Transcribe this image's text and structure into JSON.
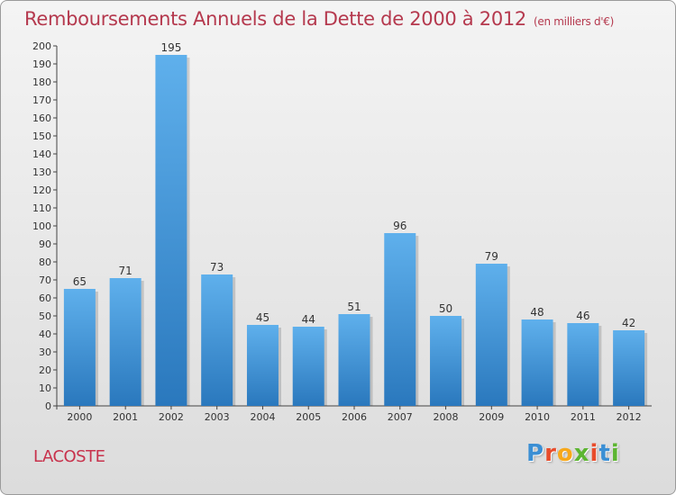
{
  "title": "Remboursements Annuels de la Dette de 2000 à 2012",
  "unit": "(en milliers d'€)",
  "town": "LACOSTE",
  "logo": {
    "letters": [
      "P",
      "r",
      "o",
      "x",
      "i",
      "t",
      "i"
    ],
    "colors": [
      "#3b8fd4",
      "#e84c2b",
      "#f7a81b",
      "#5cb531",
      "#e84c2b",
      "#3b8fd4",
      "#5cb531"
    ]
  },
  "colors": {
    "bar_light": "#5fb0ec",
    "bar_dark": "#2a78bd",
    "title": "#b5394e"
  },
  "chart_data": {
    "type": "bar",
    "categories": [
      "2000",
      "2001",
      "2002",
      "2003",
      "2004",
      "2005",
      "2006",
      "2007",
      "2008",
      "2009",
      "2010",
      "2011",
      "2012"
    ],
    "values": [
      65,
      71,
      195,
      73,
      45,
      44,
      51,
      96,
      50,
      79,
      48,
      46,
      42
    ],
    "ylim": [
      0,
      200
    ],
    "yticks": [
      0,
      10,
      20,
      30,
      40,
      50,
      60,
      70,
      80,
      90,
      100,
      110,
      120,
      130,
      140,
      150,
      160,
      170,
      180,
      190,
      200
    ],
    "grid": false,
    "data_labels": true
  }
}
